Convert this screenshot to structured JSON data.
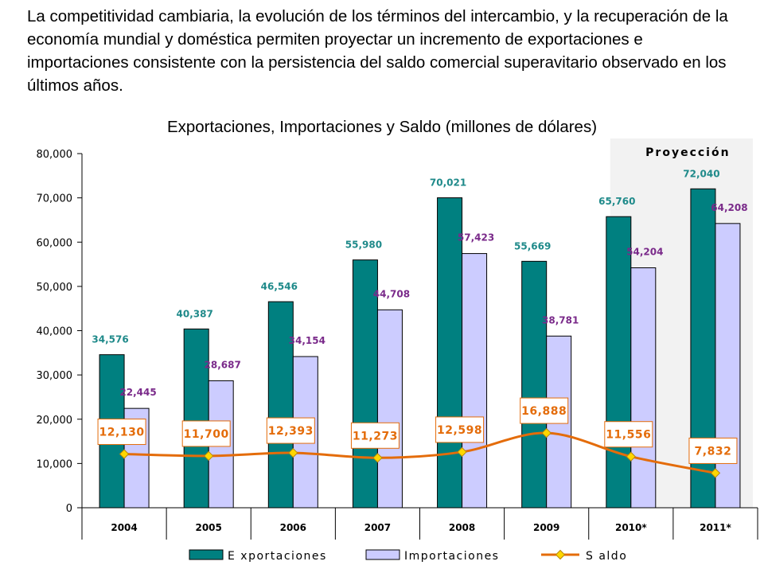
{
  "intro_text": "La competitividad cambiaria, la evolución de los términos del intercambio, y la recuperación de la economía mundial y doméstica permiten proyectar un incremento de exportaciones e importaciones consistente con la persistencia del saldo comercial superavitario observado en los últimos años.",
  "chart_data": {
    "type": "bar",
    "title": "Exportaciones, Importaciones y Saldo (millones de dólares)",
    "categories": [
      "2004",
      "2005",
      "2006",
      "2007",
      "2008",
      "2009",
      "2010*",
      "2011*"
    ],
    "series": [
      {
        "name": "E xportaciones",
        "type": "bar",
        "color": "#008080",
        "values": [
          34576,
          40387,
          46546,
          55980,
          70021,
          55669,
          65760,
          72040
        ],
        "labels": [
          "34,576",
          "40,387",
          "46,546",
          "55,980",
          "70,021",
          "55,669",
          "65,760",
          "72,040"
        ]
      },
      {
        "name": "Importaciones",
        "type": "bar",
        "color": "#ccccff",
        "values": [
          22445,
          28687,
          34154,
          44708,
          57423,
          38781,
          54204,
          64208
        ],
        "labels": [
          "22,445",
          "28,687",
          "34,154",
          "44,708",
          "57,423",
          "38,781",
          "54,204",
          "64,208"
        ]
      },
      {
        "name": "S aldo",
        "type": "line",
        "color": "#e46c0a",
        "marker_color": "#ffd700",
        "values": [
          12130,
          11700,
          12393,
          11273,
          12598,
          16888,
          11556,
          7832
        ],
        "labels": [
          "12,130",
          "11,700",
          "12,393",
          "11,273",
          "12,598",
          "16,888",
          "11,556",
          "7,832"
        ]
      }
    ],
    "ylim": [
      0,
      80000
    ],
    "yticks": [
      0,
      10000,
      20000,
      30000,
      40000,
      50000,
      60000,
      70000,
      80000
    ],
    "ytick_labels": [
      "0",
      "10,000",
      "20,000",
      "30,000",
      "40,000",
      "50,000",
      "60,000",
      "70,000",
      "80,000"
    ],
    "projection_label": "Proyección",
    "projection_categories": [
      "2010*",
      "2011*"
    ],
    "legend_position": "bottom",
    "grid": false
  },
  "colors": {
    "export_label": "#1f8a8a",
    "import_label": "#7a2a8a",
    "saldo": "#e46c0a",
    "projection_bg": "#f2f2f2"
  }
}
